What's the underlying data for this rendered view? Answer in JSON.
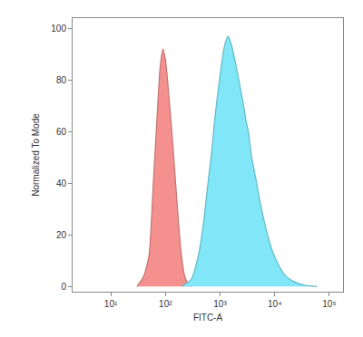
{
  "chart_data": {
    "type": "area",
    "log": "x",
    "grid": false,
    "x_label": "FITC-A",
    "y_label": "Normalized To Mode",
    "xlim": [
      2,
      178000
    ],
    "ylim": [
      -2,
      104
    ],
    "xticks": [
      {
        "value": 10,
        "label": "10¹"
      },
      {
        "value": 100,
        "label": "10²"
      },
      {
        "value": 1000,
        "label": "10³"
      },
      {
        "value": 10000,
        "label": "10⁴"
      },
      {
        "value": 100000,
        "label": "10⁵"
      }
    ],
    "yticks": [
      0,
      20,
      40,
      60,
      80,
      100
    ],
    "series": [
      {
        "color": "#f4918f",
        "x": [
          30,
          40,
          50,
          60,
          70,
          80,
          90,
          100,
          120,
          140,
          160,
          190,
          220,
          260,
          300
        ],
        "values": [
          0,
          4,
          12,
          40,
          65,
          85,
          92,
          88,
          70,
          52,
          35,
          15,
          5,
          1,
          0
        ]
      },
      {
        "color": "#80e6f8",
        "x": [
          200,
          300,
          400,
          500,
          600,
          700,
          800,
          1000,
          1200,
          1400,
          1600,
          1900,
          2300,
          2700,
          3000,
          3300,
          3800,
          4500,
          5500,
          7000,
          9000,
          12000,
          16000,
          22000,
          35000,
          60000
        ],
        "values": [
          0,
          3,
          12,
          25,
          40,
          52,
          65,
          82,
          93,
          97,
          94,
          87,
          78,
          70,
          64,
          60,
          50,
          42,
          32,
          22,
          14,
          8,
          4,
          2,
          0.5,
          0
        ]
      }
    ]
  }
}
